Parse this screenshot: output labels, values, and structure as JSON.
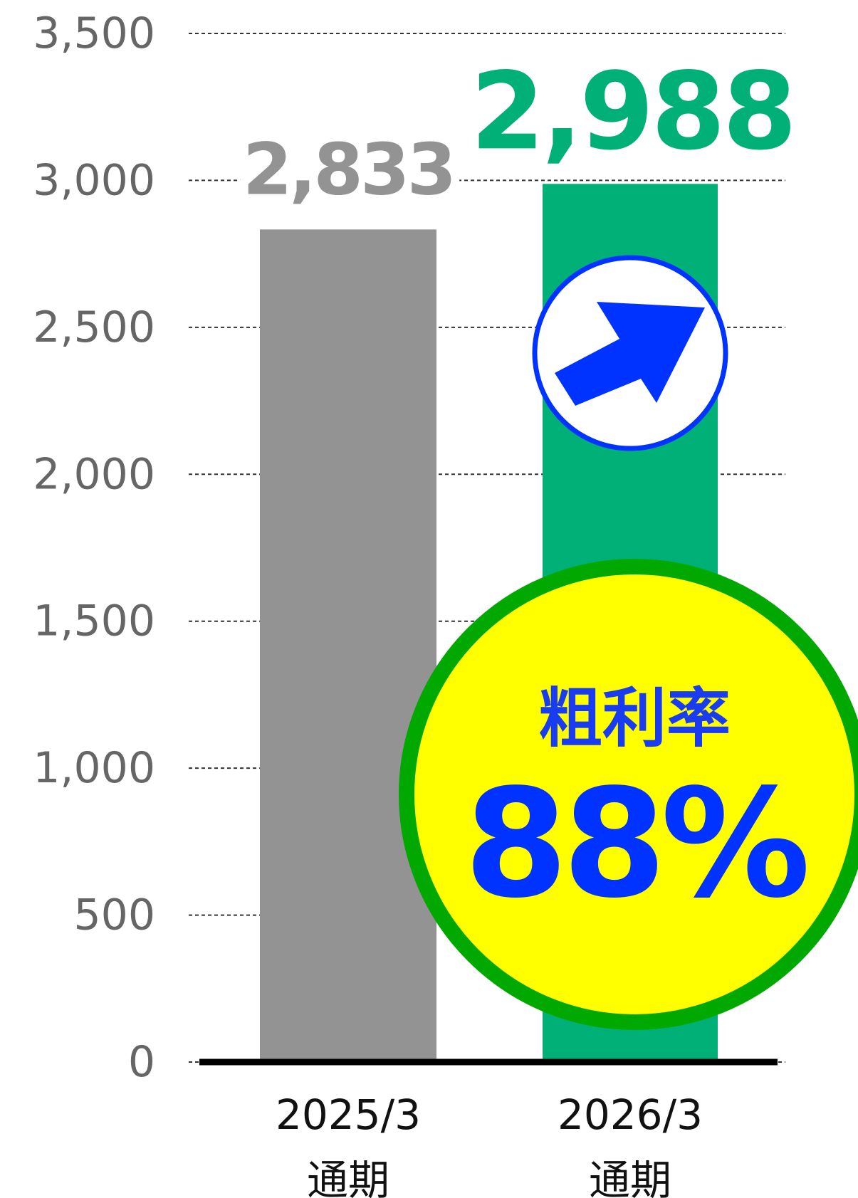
{
  "chart_data": {
    "type": "bar",
    "categories": [
      "2025/3\n通期",
      "2026/3\n通期"
    ],
    "values": [
      2833,
      2988
    ],
    "value_labels": [
      "2,833",
      "2,988"
    ],
    "colors": [
      "#939393",
      "#00b077"
    ],
    "label_colors": [
      "#939393",
      "#00b077"
    ],
    "ylim": [
      0,
      3500
    ],
    "yticks": [
      0,
      500,
      {
        "value": 1000,
        "label": "1,000"
      },
      {
        "value": 1500,
        "label": "1,500"
      },
      {
        "value": 2000,
        "label": "2,000"
      },
      {
        "value": 2500,
        "label": "2,500"
      },
      {
        "value": 3000,
        "label": "3,000"
      },
      {
        "value": 3500,
        "label": "3,500"
      }
    ],
    "grid": true,
    "annotation": {
      "title": "粗利率",
      "text": "88%"
    }
  }
}
